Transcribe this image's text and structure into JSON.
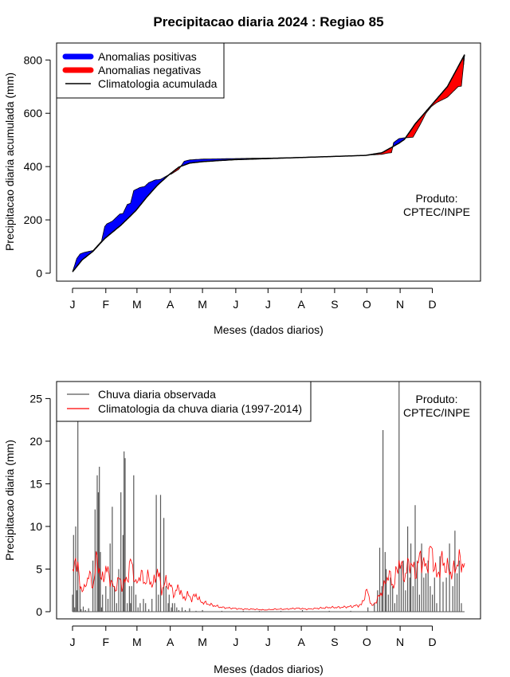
{
  "title": "Precipitacao diaria 2024 : Regiao 85",
  "month_labels": [
    "J",
    "F",
    "M",
    "A",
    "M",
    "J",
    "J",
    "A",
    "S",
    "O",
    "N",
    "D"
  ],
  "xlabel": "Meses (dados diarios)",
  "colors": {
    "positive": "#0000ff",
    "negative": "#ff0000",
    "climatology": "#000000",
    "observed_bars": "#595959",
    "clim_daily": "#ff0000"
  },
  "chart_data": [
    {
      "type": "area",
      "ylabel": "Precipitacao diaria acumulada (mm)",
      "ylim": [
        0,
        820
      ],
      "yticks": [
        0,
        200,
        400,
        600,
        800
      ],
      "xlim": [
        1,
        366
      ],
      "grid": false,
      "legend_position": "top-left",
      "legend": [
        {
          "label": "Anomalias positivas",
          "key": "positive"
        },
        {
          "label": "Anomalias negativas",
          "key": "negative"
        },
        {
          "label": "Climatologia acumulada",
          "key": "climatology"
        }
      ],
      "note": [
        "Produto:",
        "CPTEC/INPE"
      ],
      "series": [
        {
          "name": "Climatologia acumulada",
          "x": [
            1,
            10,
            20,
            31,
            40,
            46,
            55,
            60,
            70,
            80,
            91,
            100,
            110,
            121,
            135,
            152,
            182,
            213,
            244,
            274,
            289,
            298,
            305,
            310,
            320,
            335,
            350,
            366
          ],
          "values": [
            5,
            50,
            82,
            130,
            160,
            180,
            215,
            235,
            285,
            330,
            370,
            398,
            413,
            418,
            422,
            426,
            430,
            434,
            438,
            442,
            452,
            472,
            488,
            502,
            560,
            630,
            700,
            820
          ]
        },
        {
          "name": "Precipitacao acumulada observada",
          "x": [
            1,
            5,
            8,
            12,
            20,
            28,
            31,
            33,
            38,
            45,
            48,
            52,
            55,
            58,
            62,
            64,
            68,
            72,
            78,
            83,
            90,
            93,
            100,
            105,
            110,
            121,
            150,
            200,
            244,
            274,
            280,
            289,
            295,
            298,
            300,
            305,
            310,
            318,
            325,
            330,
            335,
            340,
            350,
            360,
            363,
            366
          ],
          "values": [
            5,
            55,
            72,
            78,
            85,
            120,
            175,
            185,
            195,
            222,
            224,
            258,
            262,
            310,
            318,
            322,
            325,
            340,
            350,
            352,
            368,
            372,
            390,
            420,
            425,
            428,
            430,
            433,
            438,
            442,
            444,
            446,
            451,
            452,
            490,
            505,
            508,
            510,
            560,
            600,
            625,
            640,
            660,
            700,
            702,
            820
          ]
        }
      ]
    },
    {
      "type": "bar",
      "ylabel": "Precipitacao diaria (mm)",
      "ylim": [
        0,
        27
      ],
      "yticks": [
        0,
        5,
        10,
        15,
        20,
        25
      ],
      "xlim": [
        1,
        366
      ],
      "grid": false,
      "legend_position": "top-left",
      "legend": [
        {
          "label": "Chuva diaria observada",
          "key": "observed_bars"
        },
        {
          "label": "Climatologia da chuva diaria (1997-2014)",
          "key": "clim_daily"
        }
      ],
      "note": [
        "Produto:",
        "CPTEC/INPE"
      ],
      "series": [
        {
          "name": "Chuva diaria observada",
          "x": [
            1,
            2,
            3,
            4,
            5,
            6,
            8,
            9,
            11,
            13,
            16,
            20,
            22,
            24,
            25,
            26,
            27,
            28,
            29,
            32,
            34,
            36,
            38,
            40,
            42,
            44,
            46,
            48,
            49,
            50,
            52,
            54,
            55,
            56,
            58,
            60,
            62,
            64,
            67,
            69,
            72,
            75,
            79,
            81,
            83,
            86,
            88,
            90,
            91,
            93,
            94,
            96,
            98,
            100,
            103,
            106,
            110,
            116,
            122,
            140,
            160,
            175,
            195,
            215,
            240,
            260,
            276,
            282,
            285,
            287,
            289,
            290,
            292,
            293,
            295,
            297,
            299,
            301,
            303,
            305,
            307,
            309,
            311,
            313,
            315,
            316,
            318,
            320,
            322,
            324,
            326,
            328,
            330,
            332,
            334,
            336,
            338,
            340,
            343,
            346,
            349,
            352,
            355,
            357,
            359,
            361,
            363
          ],
          "values": [
            2,
            9,
            0.5,
            10,
            2.5,
            22.7,
            3,
            0.3,
            0.6,
            0.2,
            0.4,
            6,
            12,
            16,
            14,
            17,
            7,
            0.5,
            2,
            3,
            1.5,
            8,
            12.3,
            3,
            1,
            5,
            14,
            9,
            18.8,
            18,
            1,
            3,
            1,
            3,
            16,
            2,
            0.5,
            1,
            1.5,
            1,
            0.3,
            1.5,
            13.7,
            2,
            13.7,
            11,
            3,
            1,
            2,
            0.5,
            1,
            1,
            0.5,
            0.2,
            0.5,
            0.2,
            0.4,
            0.1,
            0.2,
            0.1,
            0.1,
            0.1,
            0.1,
            0.2,
            0.1,
            0.1,
            0.5,
            1,
            2.5,
            7.5,
            3,
            21.3,
            7,
            5,
            2,
            4,
            3,
            1,
            2,
            27,
            5.5,
            6,
            2.5,
            10,
            4,
            8,
            3,
            12.5,
            6,
            2,
            8,
            4,
            4.5,
            6,
            3,
            2,
            4,
            1,
            6.5,
            3.5,
            4,
            8,
            3,
            9.5,
            4.5,
            6,
            1
          ]
        },
        {
          "name": "Climatologia da chuva diaria (1997-2014)",
          "x": [
            1,
            4,
            8,
            12,
            16,
            20,
            24,
            28,
            32,
            36,
            40,
            44,
            48,
            52,
            56,
            60,
            64,
            68,
            72,
            76,
            80,
            84,
            88,
            92,
            96,
            100,
            104,
            108,
            112,
            116,
            120,
            125,
            130,
            140,
            150,
            160,
            170,
            180,
            190,
            200,
            210,
            220,
            230,
            240,
            250,
            260,
            270,
            275,
            280,
            285,
            290,
            295,
            300,
            305,
            310,
            315,
            320,
            325,
            330,
            335,
            340,
            345,
            350,
            355,
            360,
            366
          ],
          "values": [
            4,
            6.8,
            3,
            2.5,
            4.5,
            3,
            6.5,
            3.5,
            5,
            4,
            2.5,
            3.8,
            3,
            4,
            6,
            3,
            4.5,
            3.5,
            4,
            3,
            5,
            2.5,
            3.5,
            3,
            2,
            3,
            1.5,
            2,
            1.5,
            2,
            1.2,
            1,
            0.8,
            0.5,
            0.4,
            0.3,
            0.3,
            0.2,
            0.3,
            0.3,
            0.4,
            0.3,
            0.4,
            0.5,
            0.5,
            0.6,
            0.8,
            2.5,
            0.6,
            1.5,
            2.5,
            4.5,
            3,
            6,
            4,
            6,
            4.5,
            6.5,
            5,
            7.5,
            4,
            6,
            5,
            4.5,
            6,
            5.5
          ]
        }
      ]
    }
  ]
}
